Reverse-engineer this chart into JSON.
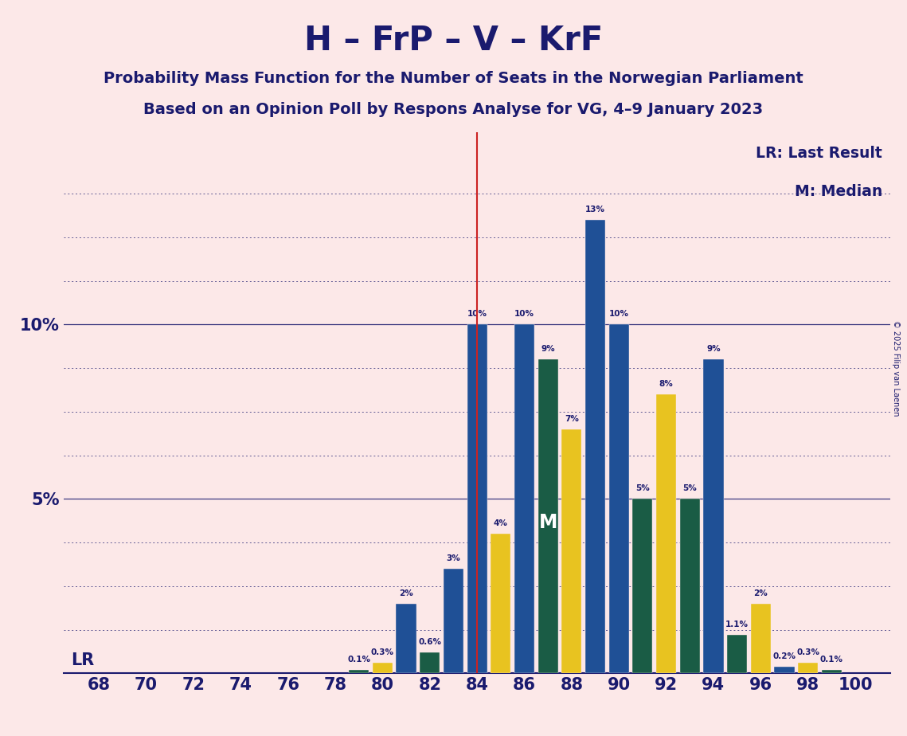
{
  "title": "H – FrP – V – KrF",
  "subtitle1": "Probability Mass Function for the Number of Seats in the Norwegian Parliament",
  "subtitle2": "Based on an Opinion Poll by Respons Analyse for VG, 4–9 January 2023",
  "copyright": "© 2025 Filip van Laenen",
  "background_color": "#fce8e8",
  "title_color": "#1a1a6e",
  "seats": [
    68,
    69,
    70,
    71,
    72,
    73,
    74,
    75,
    76,
    77,
    78,
    79,
    80,
    81,
    82,
    83,
    84,
    85,
    86,
    87,
    88,
    89,
    90,
    91,
    92,
    93,
    94,
    95,
    96,
    97,
    98,
    99,
    100
  ],
  "values": [
    0.0,
    0.0,
    0.0,
    0.0,
    0.0,
    0.0,
    0.0,
    0.0,
    0.0,
    0.0,
    0.0,
    0.1,
    0.3,
    2.0,
    0.6,
    3.0,
    10.0,
    4.0,
    10.0,
    9.0,
    7.0,
    13.0,
    10.0,
    5.0,
    8.0,
    5.0,
    9.0,
    1.1,
    2.0,
    0.2,
    0.3,
    0.1,
    0.0
  ],
  "bar_colors": [
    "#1f5096",
    "#1f5096",
    "#1f5096",
    "#1f5096",
    "#1f5096",
    "#1f5096",
    "#1f5096",
    "#1f5096",
    "#1f5096",
    "#1f5096",
    "#1f5096",
    "#1a5c45",
    "#e8c320",
    "#1f5096",
    "#1a5c45",
    "#1f5096",
    "#1f5096",
    "#e8c320",
    "#1f5096",
    "#1a5c45",
    "#e8c320",
    "#1f5096",
    "#1f5096",
    "#1a5c45",
    "#e8c320",
    "#1a5c45",
    "#1f5096",
    "#1a5c45",
    "#e8c320",
    "#1f5096",
    "#e8c320",
    "#1a5c45",
    "#1f5096"
  ],
  "lr_seat": 84,
  "median_seat": 87,
  "ylim": [
    0,
    15.5
  ],
  "xlim": [
    66.5,
    101.5
  ],
  "solid_yticks": [
    0.0,
    5.0,
    10.0
  ],
  "dotted_yticks": [
    1.25,
    2.5,
    3.75,
    6.25,
    7.5,
    8.75,
    11.25,
    12.5,
    13.75
  ],
  "bar_width": 0.85,
  "label_fontsize": 7.5,
  "tick_fontsize": 15,
  "title_fontsize": 30,
  "subtitle_fontsize": 14
}
